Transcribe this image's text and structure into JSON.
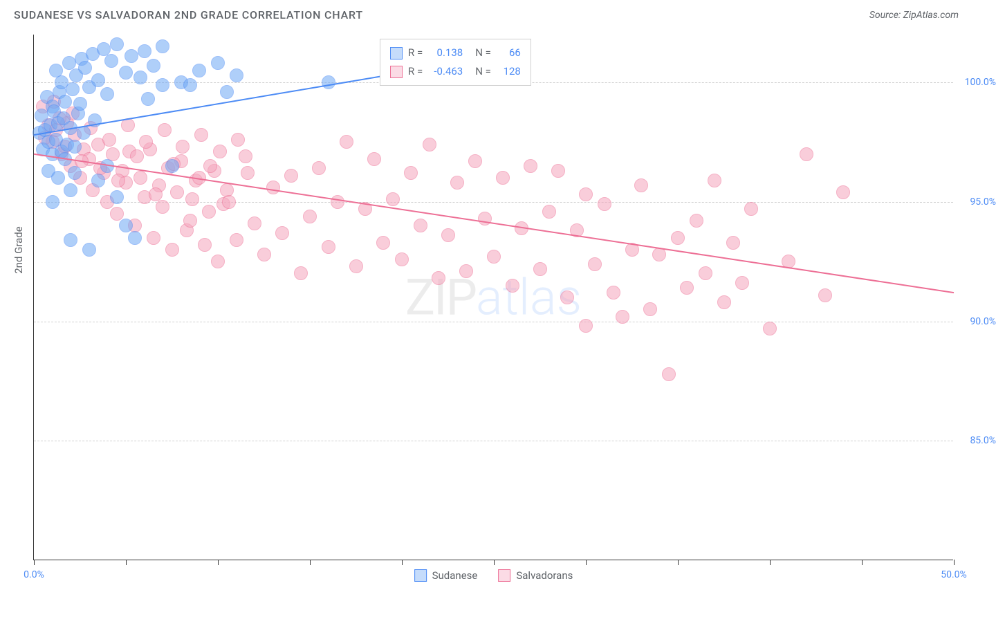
{
  "title": "SUDANESE VS SALVADORAN 2ND GRADE CORRELATION CHART",
  "source": "Source: ZipAtlas.com",
  "ylabel": "2nd Grade",
  "watermark_zip": "ZIP",
  "watermark_atlas": "atlas",
  "chart": {
    "type": "scatter",
    "xlim": [
      0,
      50
    ],
    "ylim": [
      80,
      102
    ],
    "yticks": [
      {
        "v": 85,
        "label": "85.0%"
      },
      {
        "v": 90,
        "label": "90.0%"
      },
      {
        "v": 95,
        "label": "95.0%"
      },
      {
        "v": 100,
        "label": "100.0%"
      }
    ],
    "xticks_at": [
      0,
      5,
      10,
      15,
      20,
      25,
      30,
      35,
      40,
      45,
      50
    ],
    "xtick_labels": [
      {
        "v": 0,
        "label": "0.0%"
      },
      {
        "v": 50,
        "label": "50.0%"
      }
    ],
    "grid_color": "#d0d0d0",
    "background_color": "#ffffff",
    "axis_color": "#333333",
    "marker_radius": 10,
    "marker_opacity": 0.55,
    "series": [
      {
        "name": "Sudanese",
        "color": "#6fa8f5",
        "border": "#4c8bf5",
        "R": "0.138",
        "N": "66",
        "trend": {
          "x1": 0,
          "y1": 97.8,
          "x2": 20,
          "y2": 100.4,
          "width": 2
        },
        "points": [
          [
            0.3,
            97.9
          ],
          [
            0.4,
            98.6
          ],
          [
            0.5,
            97.2
          ],
          [
            0.6,
            98.0
          ],
          [
            0.7,
            99.4
          ],
          [
            0.8,
            97.5
          ],
          [
            0.9,
            98.2
          ],
          [
            1.0,
            99.0
          ],
          [
            1.0,
            97.0
          ],
          [
            1.1,
            98.8
          ],
          [
            1.2,
            97.6
          ],
          [
            1.2,
            100.5
          ],
          [
            1.3,
            98.3
          ],
          [
            1.4,
            99.6
          ],
          [
            1.5,
            97.1
          ],
          [
            1.5,
            100.0
          ],
          [
            1.6,
            98.5
          ],
          [
            1.7,
            99.2
          ],
          [
            1.8,
            97.4
          ],
          [
            1.9,
            100.8
          ],
          [
            2.0,
            98.1
          ],
          [
            2.0,
            93.4
          ],
          [
            2.1,
            99.7
          ],
          [
            2.2,
            97.3
          ],
          [
            2.3,
            100.3
          ],
          [
            2.4,
            98.7
          ],
          [
            2.5,
            99.1
          ],
          [
            2.6,
            101.0
          ],
          [
            2.7,
            97.9
          ],
          [
            2.8,
            100.6
          ],
          [
            3.0,
            93.0
          ],
          [
            3.0,
            99.8
          ],
          [
            3.2,
            101.2
          ],
          [
            3.3,
            98.4
          ],
          [
            3.5,
            100.1
          ],
          [
            3.5,
            95.9
          ],
          [
            3.8,
            101.4
          ],
          [
            4.0,
            99.5
          ],
          [
            4.2,
            100.9
          ],
          [
            4.5,
            95.2
          ],
          [
            4.5,
            101.6
          ],
          [
            5.0,
            100.4
          ],
          [
            5.0,
            94.0
          ],
          [
            5.3,
            101.1
          ],
          [
            5.5,
            93.5
          ],
          [
            5.8,
            100.2
          ],
          [
            6.0,
            101.3
          ],
          [
            6.2,
            99.3
          ],
          [
            6.5,
            100.7
          ],
          [
            7.0,
            101.5
          ],
          [
            7.0,
            99.9
          ],
          [
            7.5,
            96.5
          ],
          [
            8.0,
            100.0
          ],
          [
            8.5,
            99.9
          ],
          [
            9.0,
            100.5
          ],
          [
            10.0,
            100.8
          ],
          [
            10.5,
            99.6
          ],
          [
            11.0,
            100.3
          ],
          [
            2.0,
            95.5
          ],
          [
            1.0,
            95.0
          ],
          [
            0.8,
            96.3
          ],
          [
            1.3,
            96.0
          ],
          [
            1.7,
            96.8
          ],
          [
            2.2,
            96.2
          ],
          [
            4.0,
            96.5
          ],
          [
            16.0,
            100.0
          ]
        ]
      },
      {
        "name": "Salvadorans",
        "color": "#f5a6bd",
        "border": "#ed6f95",
        "R": "-0.463",
        "N": "128",
        "trend": {
          "x1": 0,
          "y1": 97.0,
          "x2": 50,
          "y2": 91.2,
          "width": 2
        },
        "points": [
          [
            0.5,
            99.0
          ],
          [
            0.8,
            98.2
          ],
          [
            1.0,
            97.5
          ],
          [
            1.2,
            98.0
          ],
          [
            1.5,
            97.0
          ],
          [
            1.8,
            98.3
          ],
          [
            2.0,
            96.5
          ],
          [
            2.2,
            97.8
          ],
          [
            2.5,
            96.0
          ],
          [
            2.7,
            97.2
          ],
          [
            3.0,
            96.8
          ],
          [
            3.2,
            95.5
          ],
          [
            3.5,
            97.4
          ],
          [
            3.8,
            96.2
          ],
          [
            4.0,
            95.0
          ],
          [
            4.3,
            97.0
          ],
          [
            4.5,
            94.5
          ],
          [
            4.8,
            96.3
          ],
          [
            5.0,
            95.8
          ],
          [
            5.2,
            97.1
          ],
          [
            5.5,
            94.0
          ],
          [
            5.8,
            96.0
          ],
          [
            6.0,
            95.2
          ],
          [
            6.3,
            97.2
          ],
          [
            6.5,
            93.5
          ],
          [
            6.8,
            95.7
          ],
          [
            7.0,
            94.8
          ],
          [
            7.3,
            96.4
          ],
          [
            7.5,
            93.0
          ],
          [
            7.8,
            95.4
          ],
          [
            8.0,
            96.7
          ],
          [
            8.3,
            93.8
          ],
          [
            8.5,
            94.2
          ],
          [
            8.8,
            95.9
          ],
          [
            9.0,
            96.0
          ],
          [
            9.3,
            93.2
          ],
          [
            9.5,
            94.6
          ],
          [
            9.8,
            96.3
          ],
          [
            10.0,
            92.5
          ],
          [
            10.3,
            94.9
          ],
          [
            10.5,
            95.5
          ],
          [
            11.0,
            93.4
          ],
          [
            11.5,
            96.9
          ],
          [
            12.0,
            94.1
          ],
          [
            12.5,
            92.8
          ],
          [
            13.0,
            95.6
          ],
          [
            13.5,
            93.7
          ],
          [
            14.0,
            96.1
          ],
          [
            14.5,
            92.0
          ],
          [
            15.0,
            94.4
          ],
          [
            15.5,
            96.4
          ],
          [
            16.0,
            93.1
          ],
          [
            16.5,
            95.0
          ],
          [
            17.0,
            97.5
          ],
          [
            17.5,
            92.3
          ],
          [
            18.0,
            94.7
          ],
          [
            18.5,
            96.8
          ],
          [
            19.0,
            93.3
          ],
          [
            19.5,
            95.1
          ],
          [
            20.0,
            92.6
          ],
          [
            20.5,
            96.2
          ],
          [
            21.0,
            94.0
          ],
          [
            21.5,
            97.4
          ],
          [
            22.0,
            91.8
          ],
          [
            22.5,
            93.6
          ],
          [
            23.0,
            95.8
          ],
          [
            23.5,
            92.1
          ],
          [
            24.0,
            96.7
          ],
          [
            24.5,
            94.3
          ],
          [
            25.0,
            92.7
          ],
          [
            25.5,
            96.0
          ],
          [
            26.0,
            91.5
          ],
          [
            26.5,
            93.9
          ],
          [
            27.0,
            96.5
          ],
          [
            27.5,
            92.2
          ],
          [
            28.0,
            94.6
          ],
          [
            28.5,
            96.3
          ],
          [
            29.0,
            91.0
          ],
          [
            29.5,
            93.8
          ],
          [
            30.0,
            95.3
          ],
          [
            30.0,
            89.8
          ],
          [
            30.5,
            92.4
          ],
          [
            31.0,
            94.9
          ],
          [
            31.5,
            91.2
          ],
          [
            32.0,
            90.2
          ],
          [
            32.5,
            93.0
          ],
          [
            33.0,
            95.7
          ],
          [
            33.5,
            90.5
          ],
          [
            34.0,
            92.8
          ],
          [
            34.5,
            87.8
          ],
          [
            35.0,
            93.5
          ],
          [
            35.5,
            91.4
          ],
          [
            36.0,
            94.2
          ],
          [
            36.5,
            92.0
          ],
          [
            37.0,
            95.9
          ],
          [
            37.5,
            90.8
          ],
          [
            38.0,
            93.3
          ],
          [
            38.5,
            91.6
          ],
          [
            39.0,
            94.7
          ],
          [
            40.0,
            89.7
          ],
          [
            41.0,
            92.5
          ],
          [
            42.0,
            97.0
          ],
          [
            43.0,
            91.1
          ],
          [
            44.0,
            95.4
          ],
          [
            0.6,
            97.7
          ],
          [
            1.1,
            99.2
          ],
          [
            1.4,
            98.5
          ],
          [
            1.7,
            97.3
          ],
          [
            2.1,
            98.7
          ],
          [
            2.6,
            96.7
          ],
          [
            3.1,
            98.1
          ],
          [
            3.6,
            96.4
          ],
          [
            4.1,
            97.6
          ],
          [
            4.6,
            95.9
          ],
          [
            5.1,
            98.2
          ],
          [
            5.6,
            96.9
          ],
          [
            6.1,
            97.5
          ],
          [
            6.6,
            95.3
          ],
          [
            7.1,
            98.0
          ],
          [
            7.6,
            96.6
          ],
          [
            8.1,
            97.3
          ],
          [
            8.6,
            95.1
          ],
          [
            9.1,
            97.8
          ],
          [
            9.6,
            96.5
          ],
          [
            10.1,
            97.1
          ],
          [
            10.6,
            95.0
          ],
          [
            11.1,
            97.6
          ],
          [
            11.6,
            96.2
          ]
        ]
      }
    ]
  },
  "legend": {
    "r_label": "R =",
    "n_label": "N ="
  }
}
